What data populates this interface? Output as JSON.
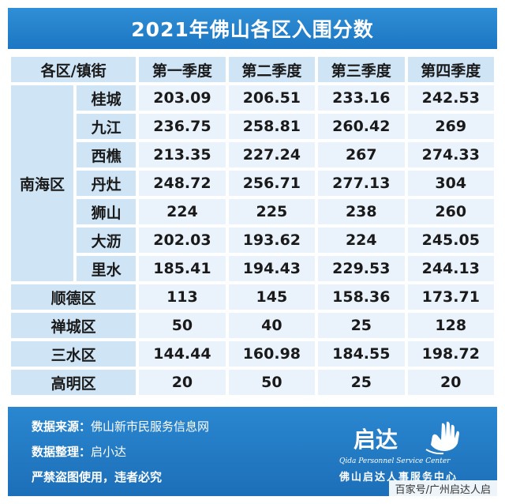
{
  "title": "2021年佛山各区入围分数",
  "header": [
    "各区/镇街",
    "第一季度",
    "第二季度",
    "第三季度",
    "第四季度"
  ],
  "nanhai": {
    "name": "南海区",
    "rows": [
      {
        "town": "桂城",
        "q": [
          "203.09",
          "206.51",
          "233.16",
          "242.53"
        ]
      },
      {
        "town": "九江",
        "q": [
          "236.75",
          "258.81",
          "260.42",
          "269"
        ]
      },
      {
        "town": "西樵",
        "q": [
          "213.35",
          "227.24",
          "267",
          "274.33"
        ]
      },
      {
        "town": "丹灶",
        "q": [
          "248.72",
          "256.71",
          "277.13",
          "304"
        ]
      },
      {
        "town": "狮山",
        "q": [
          "224",
          "225",
          "238",
          "260"
        ]
      },
      {
        "town": "大沥",
        "q": [
          "202.03",
          "193.62",
          "224",
          "245.05"
        ]
      },
      {
        "town": "里水",
        "q": [
          "185.41",
          "194.43",
          "229.53",
          "244.13"
        ]
      }
    ]
  },
  "districts": [
    {
      "name": "顺德区",
      "q": [
        "113",
        "145",
        "158.36",
        "173.71"
      ]
    },
    {
      "name": "禅城区",
      "q": [
        "50",
        "40",
        "25",
        "128"
      ]
    },
    {
      "name": "三水区",
      "q": [
        "144.44",
        "160.98",
        "184.55",
        "198.72"
      ]
    },
    {
      "name": "高明区",
      "q": [
        "20",
        "50",
        "25",
        "20"
      ]
    }
  ],
  "footer": {
    "source_key": "数据来源：",
    "source_val": "佛山新市民服务信息网",
    "org_key": "数据整理：",
    "org_val": "启小达",
    "notice": "严禁盗图使用，违者必究"
  },
  "brand": {
    "name": "启达",
    "en": "Qida Personnel Service Center",
    "cn": "佛山启达人事服务中心",
    "icon": "hand-icon"
  },
  "watermark": "百家号/广州启达人启"
}
